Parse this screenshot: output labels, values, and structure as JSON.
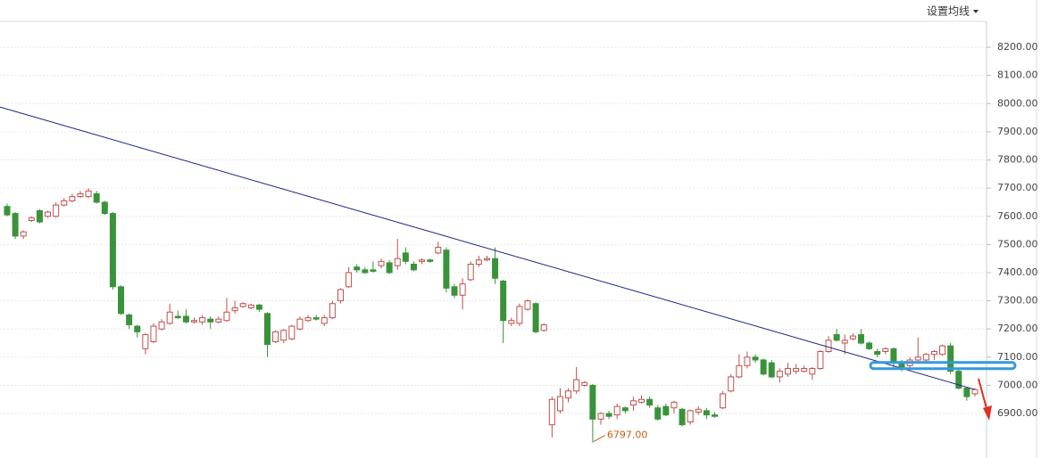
{
  "toolbar": {
    "ma_button": "设置均线"
  },
  "chart_data": {
    "type": "candlestick",
    "up_color": "#c0504d",
    "down_color": "#3a933a",
    "candles": [
      [
        7635,
        7645,
        7600,
        7605
      ],
      [
        7610,
        7615,
        7520,
        7530
      ],
      [
        7530,
        7550,
        7520,
        7545
      ],
      [
        7585,
        7600,
        7580,
        7595
      ],
      [
        7620,
        7625,
        7575,
        7580
      ],
      [
        7600,
        7620,
        7595,
        7615
      ],
      [
        7600,
        7650,
        7595,
        7640
      ],
      [
        7640,
        7665,
        7635,
        7655
      ],
      [
        7655,
        7680,
        7650,
        7670
      ],
      [
        7670,
        7690,
        7665,
        7680
      ],
      [
        7670,
        7700,
        7665,
        7690
      ],
      [
        7680,
        7690,
        7645,
        7650
      ],
      [
        7650,
        7655,
        7605,
        7610
      ],
      [
        7610,
        7615,
        7340,
        7350
      ],
      [
        7350,
        7355,
        7250,
        7255
      ],
      [
        7250,
        7255,
        7200,
        7215
      ],
      [
        7210,
        7215,
        7170,
        7190
      ],
      [
        7130,
        7185,
        7110,
        7180
      ],
      [
        7155,
        7220,
        7150,
        7210
      ],
      [
        7200,
        7235,
        7195,
        7225
      ],
      [
        7220,
        7290,
        7215,
        7260
      ],
      [
        7245,
        7265,
        7235,
        7240
      ],
      [
        7245,
        7270,
        7220,
        7225
      ],
      [
        7225,
        7240,
        7220,
        7230
      ],
      [
        7225,
        7250,
        7215,
        7240
      ],
      [
        7235,
        7245,
        7200,
        7225
      ],
      [
        7225,
        7245,
        7220,
        7235
      ],
      [
        7230,
        7310,
        7225,
        7260
      ],
      [
        7265,
        7300,
        7255,
        7275
      ],
      [
        7280,
        7295,
        7275,
        7290
      ],
      [
        7275,
        7290,
        7270,
        7285
      ],
      [
        7285,
        7290,
        7260,
        7270
      ],
      [
        7255,
        7260,
        7100,
        7145
      ],
      [
        7155,
        7195,
        7150,
        7190
      ],
      [
        7160,
        7200,
        7150,
        7195
      ],
      [
        7165,
        7215,
        7160,
        7210
      ],
      [
        7200,
        7245,
        7195,
        7235
      ],
      [
        7230,
        7250,
        7225,
        7240
      ],
      [
        7240,
        7250,
        7230,
        7235
      ],
      [
        7220,
        7250,
        7210,
        7240
      ],
      [
        7240,
        7300,
        7235,
        7290
      ],
      [
        7300,
        7345,
        7290,
        7340
      ],
      [
        7350,
        7420,
        7345,
        7400
      ],
      [
        7420,
        7430,
        7400,
        7410
      ],
      [
        7410,
        7420,
        7395,
        7400
      ],
      [
        7410,
        7440,
        7400,
        7405
      ],
      [
        7425,
        7450,
        7415,
        7440
      ],
      [
        7435,
        7445,
        7395,
        7400
      ],
      [
        7425,
        7520,
        7410,
        7450
      ],
      [
        7470,
        7490,
        7430,
        7440
      ],
      [
        7430,
        7440,
        7405,
        7410
      ],
      [
        7440,
        7450,
        7430,
        7445
      ],
      [
        7445,
        7450,
        7435,
        7440
      ],
      [
        7470,
        7510,
        7465,
        7490
      ],
      [
        7480,
        7490,
        7330,
        7345
      ],
      [
        7350,
        7360,
        7310,
        7320
      ],
      [
        7320,
        7380,
        7270,
        7360
      ],
      [
        7375,
        7440,
        7370,
        7430
      ],
      [
        7430,
        7460,
        7420,
        7445
      ],
      [
        7445,
        7460,
        7440,
        7450
      ],
      [
        7450,
        7490,
        7360,
        7380
      ],
      [
        7370,
        7375,
        7150,
        7230
      ],
      [
        7220,
        7240,
        7210,
        7230
      ],
      [
        7220,
        7290,
        7210,
        7280
      ],
      [
        7270,
        7305,
        7265,
        7300
      ],
      [
        7290,
        7295,
        7185,
        7190
      ],
      [
        7195,
        7220,
        7190,
        7215
      ],
      [
        6860,
        6960,
        6815,
        6950
      ],
      [
        6910,
        6990,
        6900,
        6960
      ],
      [
        6955,
        6990,
        6940,
        6980
      ],
      [
        6980,
        7065,
        6970,
        7020
      ],
      [
        7000,
        7015,
        6995,
        7010
      ],
      [
        7000,
        7005,
        6797,
        6880
      ],
      [
        6880,
        6905,
        6860,
        6900
      ],
      [
        6900,
        6910,
        6880,
        6890
      ],
      [
        6895,
        6935,
        6880,
        6925
      ],
      [
        6920,
        6925,
        6900,
        6910
      ],
      [
        6930,
        6960,
        6910,
        6945
      ],
      [
        6940,
        6965,
        6935,
        6950
      ],
      [
        6950,
        6960,
        6920,
        6930
      ],
      [
        6920,
        6930,
        6875,
        6880
      ],
      [
        6925,
        6935,
        6890,
        6895
      ],
      [
        6920,
        6945,
        6900,
        6940
      ],
      [
        6915,
        6920,
        6855,
        6860
      ],
      [
        6870,
        6915,
        6860,
        6910
      ],
      [
        6905,
        6925,
        6895,
        6915
      ],
      [
        6910,
        6920,
        6880,
        6895
      ],
      [
        6895,
        6905,
        6885,
        6890
      ],
      [
        6920,
        6980,
        6915,
        6970
      ],
      [
        6980,
        7040,
        6975,
        7030
      ],
      [
        7030,
        7110,
        7025,
        7070
      ],
      [
        7070,
        7120,
        7060,
        7100
      ],
      [
        7100,
        7110,
        7080,
        7090
      ],
      [
        7090,
        7095,
        7035,
        7040
      ],
      [
        7080,
        7090,
        7025,
        7030
      ],
      [
        7030,
        7060,
        7010,
        7050
      ],
      [
        7040,
        7080,
        7030,
        7060
      ],
      [
        7050,
        7075,
        7040,
        7060
      ],
      [
        7050,
        7070,
        7045,
        7060
      ],
      [
        7040,
        7065,
        7020,
        7060
      ],
      [
        7060,
        7125,
        7055,
        7120
      ],
      [
        7120,
        7175,
        7115,
        7160
      ],
      [
        7180,
        7200,
        7155,
        7160
      ],
      [
        7150,
        7180,
        7110,
        7160
      ],
      [
        7165,
        7185,
        7160,
        7175
      ],
      [
        7180,
        7200,
        7145,
        7150
      ],
      [
        7150,
        7155,
        7125,
        7130
      ],
      [
        7120,
        7130,
        7100,
        7110
      ],
      [
        7120,
        7135,
        7110,
        7130
      ],
      [
        7130,
        7135,
        7060,
        7080
      ],
      [
        7080,
        7090,
        7050,
        7060
      ],
      [
        7070,
        7100,
        7060,
        7090
      ],
      [
        7090,
        7170,
        7080,
        7100
      ],
      [
        7090,
        7115,
        7085,
        7110
      ],
      [
        7110,
        7125,
        7090,
        7120
      ],
      [
        7110,
        7145,
        7105,
        7140
      ],
      [
        7140,
        7150,
        7040,
        7050
      ],
      [
        7050,
        7060,
        6985,
        6990
      ],
      [
        6990,
        6995,
        6945,
        6960
      ],
      [
        6970,
        6990,
        6960,
        6985
      ]
    ],
    "ylim": [
      6742,
      8292
    ],
    "yticks": [
      {
        "value": 6900,
        "label": "6900.00"
      },
      {
        "value": 7000,
        "label": "7000.00"
      },
      {
        "value": 7100,
        "label": "7100.00"
      },
      {
        "value": 7200,
        "label": "7200.00"
      },
      {
        "value": 7300,
        "label": "7300.00"
      },
      {
        "value": 7400,
        "label": "7400.00"
      },
      {
        "value": 7500,
        "label": "7500.00"
      },
      {
        "value": 7600,
        "label": "7600.00"
      },
      {
        "value": 7700,
        "label": "7700.00"
      },
      {
        "value": 7800,
        "label": "7800.00"
      },
      {
        "value": 7900,
        "label": "7900.00"
      },
      {
        "value": 8000,
        "label": "8000.00"
      },
      {
        "value": 8100,
        "label": "8100.00"
      },
      {
        "value": 8200,
        "label": "8200.00"
      }
    ],
    "grid": true,
    "trendline": {
      "values": [
        7988,
        6985
      ],
      "color": "#1c1c8a"
    },
    "highlight": {
      "value": 7070,
      "color": "#3399dd"
    },
    "low_marker": {
      "value": 6797,
      "label": "6797.00",
      "color": "#c06010"
    }
  }
}
